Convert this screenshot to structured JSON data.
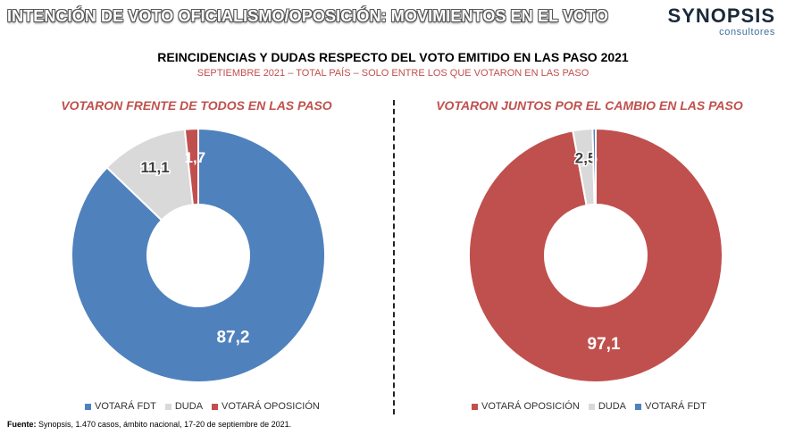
{
  "header": {
    "title": "INTENCIÓN DE VOTO OFICIALISMO/OPOSICIÓN: MOVIMIENTOS EN EL VOTO",
    "logo_main": "SYNOPSIS",
    "logo_sub": "consultores"
  },
  "subtitle": "REINCIDENCIAS Y DUDAS RESPECTO DEL VOTO EMITIDO EN LAS PASO 2021",
  "subtitle2": "SEPTIEMBRE 2021 – TOTAL PAÍS – SOLO ENTRE LOS QUE VOTARON EN LAS PASO",
  "colors": {
    "fdt": "#4f81bd",
    "duda": "#d9d9d9",
    "oposicion": "#c0504d"
  },
  "chart_data": [
    {
      "type": "pie",
      "title": "VOTARON FRENTE DE TODOS EN LAS PASO",
      "categories": [
        "VOTARÁ FDT",
        "DUDA",
        "VOTARÁ OPOSICIÓN"
      ],
      "values": [
        87.2,
        11.1,
        1.7
      ],
      "value_labels": [
        "87,2",
        "11,1",
        "1,7"
      ],
      "legend": "bottom"
    },
    {
      "type": "pie",
      "title": "VOTARON JUNTOS POR EL CAMBIO EN LAS PASO",
      "categories": [
        "VOTARÁ OPOSICIÓN",
        "DUDA",
        "VOTARÁ FDT"
      ],
      "values": [
        97.1,
        2.5,
        0.4
      ],
      "value_labels": [
        "97,1",
        "2,5",
        ""
      ],
      "legend": "bottom"
    }
  ],
  "source": {
    "label": "Fuente:",
    "text": " Synopsis, 1.470 casos, ámbito nacional, 17-20 de septiembre de 2021."
  }
}
